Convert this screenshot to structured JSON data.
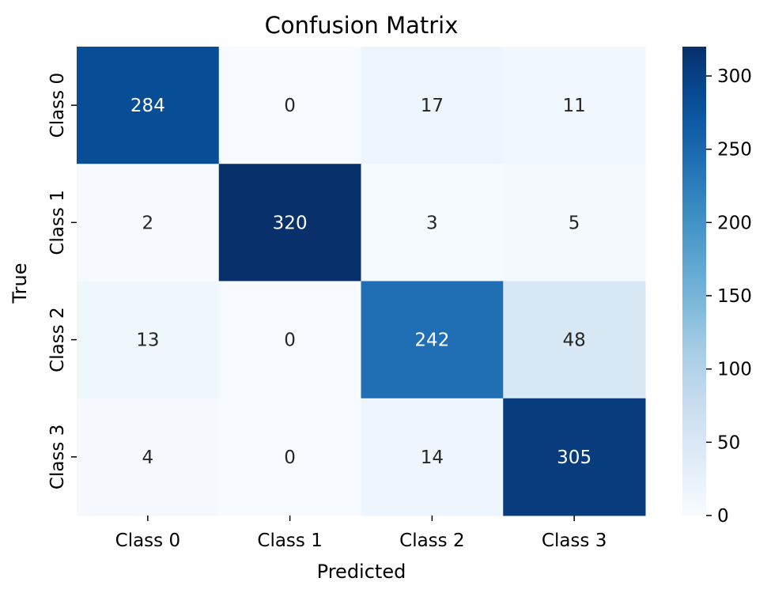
{
  "chart_data": {
    "type": "heatmap",
    "title": "Confusion Matrix",
    "xlabel": "Predicted",
    "ylabel": "True",
    "x_categories": [
      "Class 0",
      "Class 1",
      "Class 2",
      "Class 3"
    ],
    "y_categories": [
      "Class 0",
      "Class 1",
      "Class 2",
      "Class 3"
    ],
    "values": [
      [
        284,
        0,
        17,
        11
      ],
      [
        2,
        320,
        3,
        5
      ],
      [
        13,
        0,
        242,
        48
      ],
      [
        4,
        0,
        14,
        305
      ]
    ],
    "colorbar": {
      "min": 0,
      "max": 320,
      "ticks": [
        0,
        50,
        100,
        150,
        200,
        250,
        300
      ],
      "tick_labels": [
        "0",
        "50",
        "100",
        "150",
        "200",
        "250",
        "300"
      ]
    },
    "colormap": "Blues",
    "colors": {
      "low": "#f7fbff",
      "high": "#08306b",
      "text_dark": "#262626",
      "text_light": "#ffffff"
    },
    "grid": false
  }
}
